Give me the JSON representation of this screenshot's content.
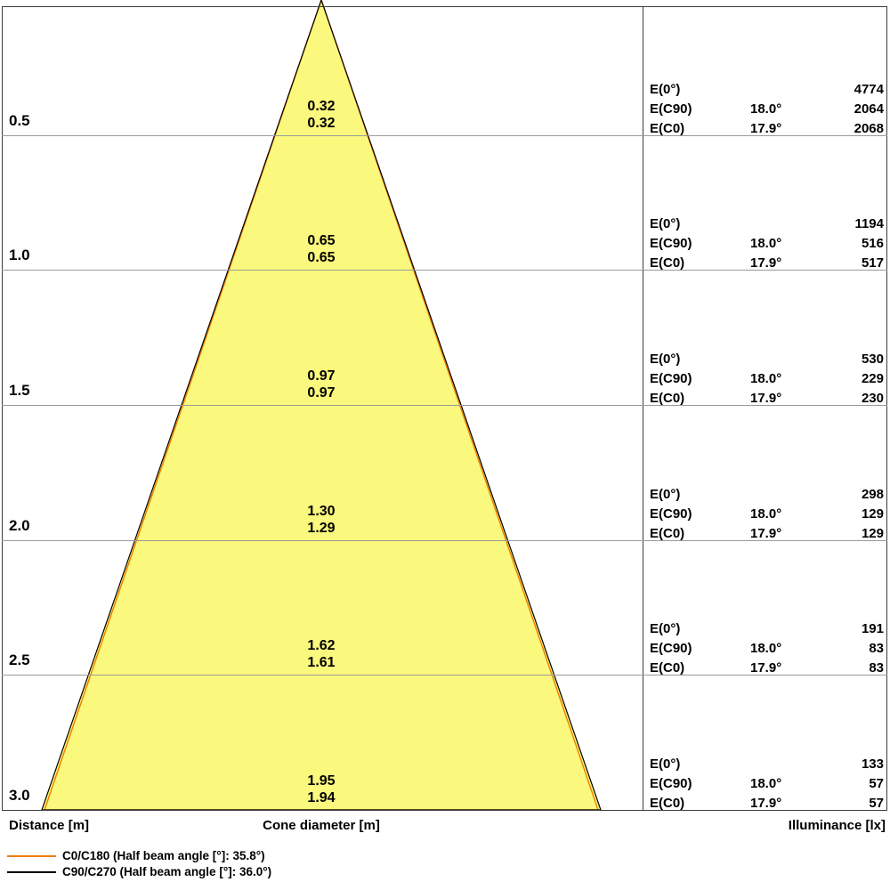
{
  "colors": {
    "cone_fill": "#faf87d",
    "c0_line": "#f07e00",
    "c90_line": "#000000",
    "grid_line": "#9a9a9a",
    "border": "#3c3c3c"
  },
  "axis": {
    "distance_label": "Distance [m]",
    "cone_diameter_label": "Cone diameter [m]",
    "illuminance_label": "Illuminance [lx]"
  },
  "legend": [
    {
      "series": "C0/C180",
      "label": "C0/C180 (Half beam angle [°]: 35.8°)",
      "color": "#f07e00"
    },
    {
      "series": "C90/C270",
      "label": "C90/C270 (Half beam angle [°]: 36.0°)",
      "color": "#000000"
    }
  ],
  "rows": [
    {
      "distance": "0.5",
      "cone_diameters": [
        "0.32",
        "0.32"
      ],
      "e_rows": [
        {
          "label": "E(0°)",
          "angle": "",
          "value": "4774"
        },
        {
          "label": "E(C90)",
          "angle": "18.0°",
          "value": "2064"
        },
        {
          "label": "E(C0)",
          "angle": "17.9°",
          "value": "2068"
        }
      ]
    },
    {
      "distance": "1.0",
      "cone_diameters": [
        "0.65",
        "0.65"
      ],
      "e_rows": [
        {
          "label": "E(0°)",
          "angle": "",
          "value": "1194"
        },
        {
          "label": "E(C90)",
          "angle": "18.0°",
          "value": "516"
        },
        {
          "label": "E(C0)",
          "angle": "17.9°",
          "value": "517"
        }
      ]
    },
    {
      "distance": "1.5",
      "cone_diameters": [
        "0.97",
        "0.97"
      ],
      "e_rows": [
        {
          "label": "E(0°)",
          "angle": "",
          "value": "530"
        },
        {
          "label": "E(C90)",
          "angle": "18.0°",
          "value": "229"
        },
        {
          "label": "E(C0)",
          "angle": "17.9°",
          "value": "230"
        }
      ]
    },
    {
      "distance": "2.0",
      "cone_diameters": [
        "1.30",
        "1.29"
      ],
      "e_rows": [
        {
          "label": "E(0°)",
          "angle": "",
          "value": "298"
        },
        {
          "label": "E(C90)",
          "angle": "18.0°",
          "value": "129"
        },
        {
          "label": "E(C0)",
          "angle": "17.9°",
          "value": "129"
        }
      ]
    },
    {
      "distance": "2.5",
      "cone_diameters": [
        "1.62",
        "1.61"
      ],
      "e_rows": [
        {
          "label": "E(0°)",
          "angle": "",
          "value": "191"
        },
        {
          "label": "E(C90)",
          "angle": "18.0°",
          "value": "83"
        },
        {
          "label": "E(C0)",
          "angle": "17.9°",
          "value": "83"
        }
      ]
    },
    {
      "distance": "3.0",
      "cone_diameters": [
        "1.95",
        "1.94"
      ],
      "e_rows": [
        {
          "label": "E(0°)",
          "angle": "",
          "value": "133"
        },
        {
          "label": "E(C90)",
          "angle": "18.0°",
          "value": "57"
        },
        {
          "label": "E(C0)",
          "angle": "17.9°",
          "value": "57"
        }
      ]
    }
  ],
  "chart_data": {
    "type": "area",
    "title": "Light cone diagram (luminous intensity cone with illuminance table)",
    "distances_m": [
      0.5,
      1.0,
      1.5,
      2.0,
      2.5,
      3.0
    ],
    "cone_diameter_c90_m": [
      0.32,
      0.65,
      0.97,
      1.3,
      1.62,
      1.95
    ],
    "cone_diameter_c0_m": [
      0.32,
      0.65,
      0.97,
      1.29,
      1.61,
      1.94
    ],
    "E0_lx": [
      4774,
      1194,
      530,
      298,
      191,
      133
    ],
    "EC90_lx": [
      2064,
      516,
      229,
      129,
      83,
      57
    ],
    "EC0_lx": [
      2068,
      517,
      230,
      129,
      83,
      57
    ],
    "half_beam_angle_per_row_c90_deg": 18.0,
    "half_beam_angle_per_row_c0_deg": 17.9,
    "legend_entries": [
      "C0/C180 (Half beam angle [°]: 35.8°)",
      "C90/C270 (Half beam angle [°]: 36.0°)"
    ],
    "axis_labels": {
      "left": "Distance [m]",
      "center": "Cone diameter [m]",
      "right": "Illuminance [lx]"
    },
    "grid": true,
    "legend_position": "bottom-left"
  }
}
